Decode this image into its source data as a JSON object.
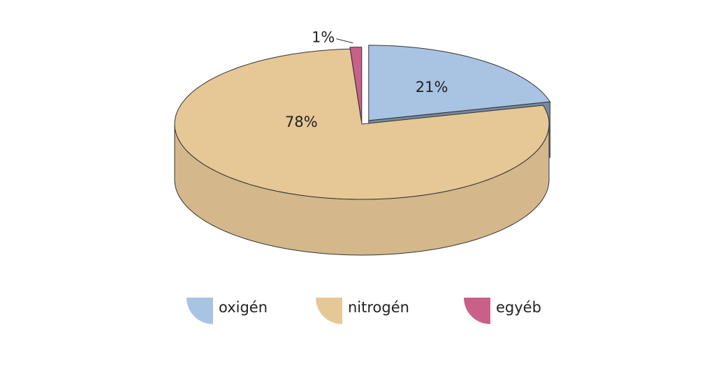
{
  "chart_data": {
    "type": "pie",
    "categories": [
      "oxigén",
      "nitrogén",
      "egyéb"
    ],
    "values": [
      21,
      78,
      1
    ],
    "value_labels": [
      "21%",
      "78%",
      "1%"
    ],
    "colors": [
      "#a9c3e3",
      "#e6c796",
      "#c9608a"
    ]
  }
}
